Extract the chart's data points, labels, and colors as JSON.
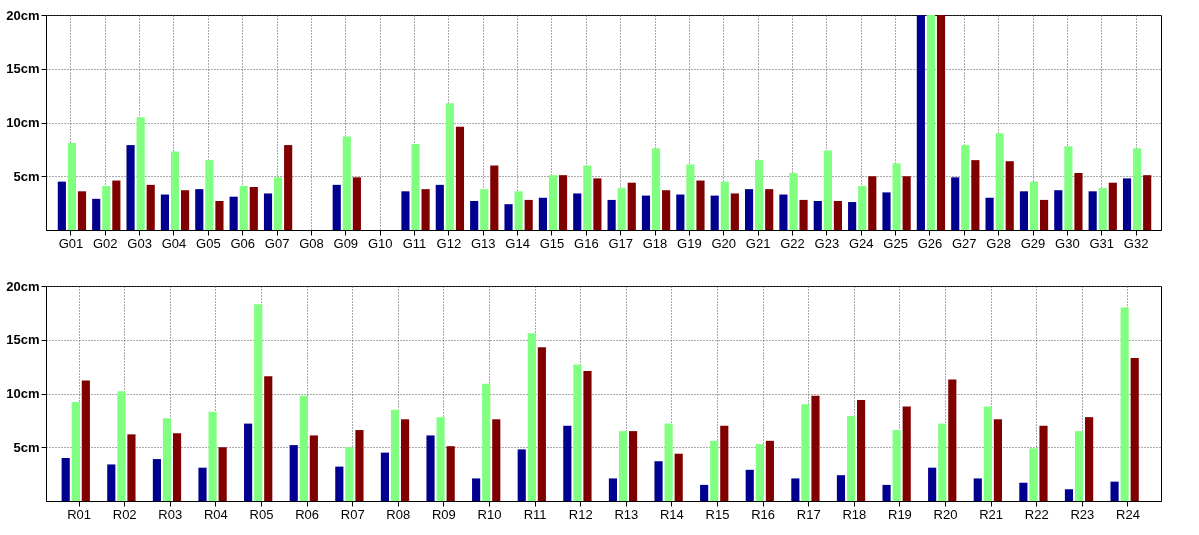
{
  "chart_data": [
    {
      "type": "bar",
      "categories": [
        "G01",
        "G02",
        "G03",
        "G04",
        "G05",
        "G06",
        "G07",
        "G08",
        "G09",
        "G10",
        "G11",
        "G12",
        "G13",
        "G14",
        "G15",
        "G16",
        "G17",
        "G18",
        "G19",
        "G20",
        "G21",
        "G22",
        "G23",
        "G24",
        "G25",
        "G26",
        "G27",
        "G28",
        "G29",
        "G30",
        "G31",
        "G32"
      ],
      "series": [
        {
          "color": "#000090",
          "values": [
            4.5,
            2.9,
            7.9,
            3.3,
            3.8,
            3.1,
            3.4,
            null,
            4.2,
            null,
            3.6,
            4.2,
            2.7,
            2.4,
            3.0,
            3.4,
            2.8,
            3.2,
            3.3,
            3.2,
            3.8,
            3.3,
            2.7,
            2.6,
            3.5,
            20,
            4.9,
            3.0,
            3.6,
            3.7,
            3.6,
            4.8
          ]
        },
        {
          "color": "#80ff80",
          "values": [
            8.1,
            4.1,
            10.5,
            7.3,
            6.5,
            4.1,
            4.9,
            null,
            8.7,
            null,
            8.0,
            11.8,
            3.8,
            3.6,
            5.1,
            6.0,
            3.9,
            7.6,
            6.1,
            4.5,
            6.5,
            5.3,
            7.4,
            4.1,
            6.2,
            20,
            7.9,
            9.0,
            4.5,
            7.8,
            3.9,
            7.6
          ]
        },
        {
          "color": "#800000",
          "values": [
            3.6,
            4.6,
            4.2,
            3.7,
            2.7,
            4.0,
            7.9,
            null,
            4.9,
            null,
            3.8,
            9.6,
            6.0,
            2.8,
            5.1,
            4.8,
            4.4,
            3.7,
            4.6,
            3.4,
            3.8,
            2.8,
            2.7,
            5.0,
            5.0,
            20,
            6.5,
            6.4,
            2.8,
            5.3,
            4.4,
            5.1
          ]
        }
      ],
      "ylim": [
        0,
        20
      ],
      "yticks": [
        {
          "value": 5,
          "label": "5cm"
        },
        {
          "value": 10,
          "label": "10cm"
        },
        {
          "value": 15,
          "label": "15cm"
        },
        {
          "value": 20,
          "label": "20cm"
        }
      ],
      "grid": true,
      "legend": false
    },
    {
      "type": "bar",
      "categories": [
        "R01",
        "R02",
        "R03",
        "R04",
        "R05",
        "R06",
        "R07",
        "R08",
        "R09",
        "R10",
        "R11",
        "R12",
        "R13",
        "R14",
        "R15",
        "R16",
        "R17",
        "R18",
        "R19",
        "R20",
        "R21",
        "R22",
        "R23",
        "R24"
      ],
      "series": [
        {
          "color": "#000090",
          "values": [
            4.0,
            3.4,
            3.9,
            3.1,
            7.2,
            5.2,
            3.2,
            4.5,
            6.1,
            2.1,
            4.8,
            7.0,
            2.1,
            3.7,
            1.5,
            2.9,
            2.1,
            2.4,
            1.5,
            3.1,
            2.1,
            1.7,
            1.1,
            1.8
          ]
        },
        {
          "color": "#80ff80",
          "values": [
            9.2,
            10.2,
            7.7,
            8.3,
            18.3,
            9.8,
            5.0,
            8.5,
            7.8,
            10.9,
            15.6,
            12.7,
            6.5,
            7.2,
            5.6,
            5.3,
            9.0,
            7.9,
            6.6,
            7.2,
            8.8,
            4.9,
            6.5,
            18.0
          ]
        },
        {
          "color": "#800000",
          "values": [
            11.2,
            6.2,
            6.3,
            5.0,
            11.6,
            6.1,
            6.6,
            7.6,
            5.1,
            7.6,
            14.3,
            12.1,
            6.5,
            4.4,
            7.0,
            5.6,
            9.8,
            9.4,
            8.8,
            11.3,
            7.6,
            7.0,
            7.8,
            13.3
          ]
        }
      ],
      "ylim": [
        0,
        20
      ],
      "yticks": [
        {
          "value": 5,
          "label": "5cm"
        },
        {
          "value": 10,
          "label": "10cm"
        },
        {
          "value": 15,
          "label": "15cm"
        },
        {
          "value": 20,
          "label": "20cm"
        }
      ],
      "grid": true,
      "legend": false
    }
  ]
}
